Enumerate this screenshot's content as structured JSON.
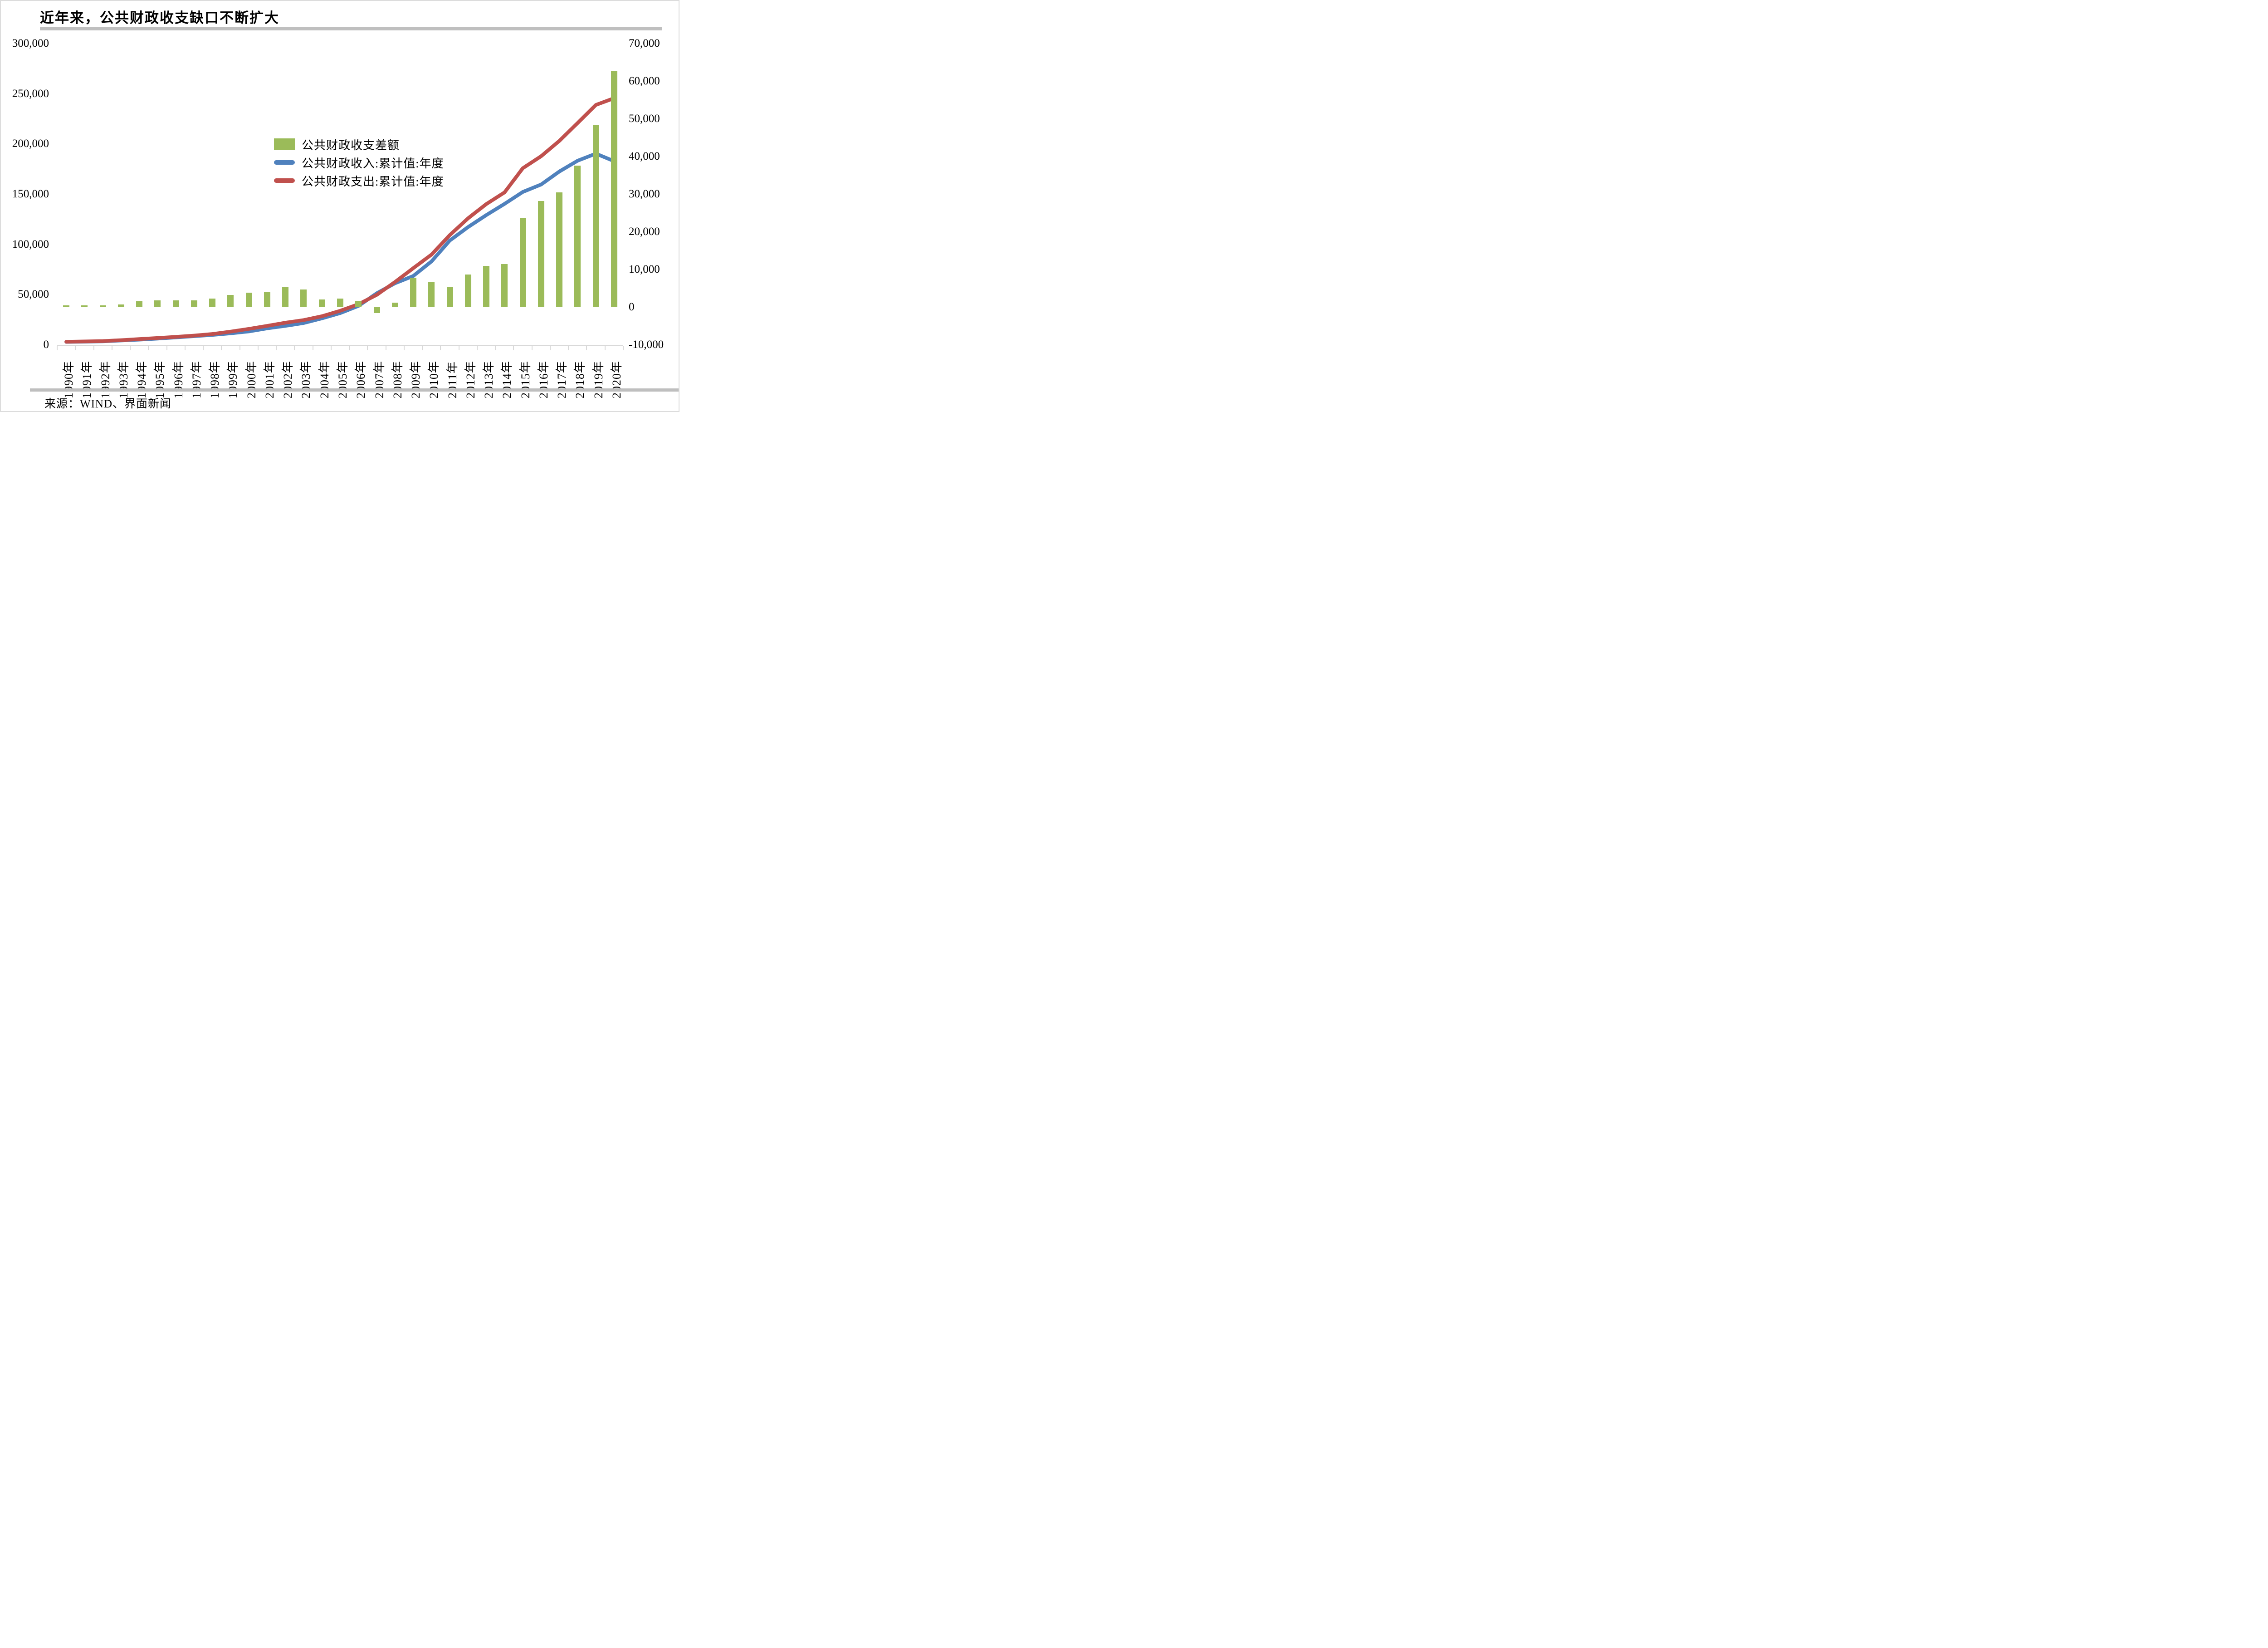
{
  "chart_data": {
    "type": "combo",
    "title": "近年来，公共财政收支缺口不断扩大",
    "source": "来源：WIND、界面新闻",
    "categories": [
      "1990年",
      "1991年",
      "1992年",
      "1993年",
      "1994年",
      "1995年",
      "1996年",
      "1997年",
      "1998年",
      "1999年",
      "2000年",
      "2001年",
      "2002年",
      "2003年",
      "2004年",
      "2005年",
      "2006年",
      "2007年",
      "2008年",
      "2009年",
      "2010年",
      "2011年",
      "2012年",
      "2013年",
      "2014年",
      "2015年",
      "2016年",
      "2017年",
      "2018年",
      "2019年",
      "2020年"
    ],
    "series": [
      {
        "name": "公共财政收支差额",
        "type": "bar",
        "axis": "right",
        "color": "#9bbb59",
        "values": [
          450,
          500,
          450,
          780,
          1590,
          1770,
          1860,
          1800,
          2320,
          3270,
          3860,
          4150,
          5440,
          4740,
          2090,
          2280,
          1660,
          -1540,
          1260,
          7780,
          6770,
          5370,
          8700,
          11000,
          11420,
          23610,
          28150,
          30490,
          37540,
          48490,
          62690
        ]
      },
      {
        "name": "公共财政收入:累计值:年度",
        "type": "line",
        "axis": "left",
        "color": "#4f81bd",
        "values": [
          2937,
          3149,
          3483,
          4349,
          5218,
          6242,
          7408,
          8651,
          9876,
          11444,
          13395,
          16386,
          18904,
          21715,
          26396,
          31649,
          38760,
          51322,
          61330,
          68518,
          83102,
          103874,
          117254,
          129210,
          140370,
          152269,
          159605,
          172593,
          183360,
          190382,
          182895
        ]
      },
      {
        "name": "公共财政支出:累计值:年度",
        "type": "line",
        "axis": "left",
        "color": "#c0504d",
        "values": [
          3084,
          3387,
          3742,
          4642,
          5793,
          6824,
          7938,
          9234,
          10798,
          13188,
          15887,
          18903,
          22053,
          24650,
          28487,
          33930,
          40423,
          49781,
          62593,
          76300,
          89874,
          109248,
          125953,
          140212,
          151786,
          175878,
          187755,
          203085,
          220904,
          238874,
          245588
        ]
      }
    ],
    "left_axis": {
      "min": 0,
      "max": 300000,
      "step": 50000,
      "tick_labels": [
        "300,000",
        "250,000",
        "200,000",
        "150,000",
        "100,000",
        "50,000",
        "0"
      ]
    },
    "right_axis": {
      "min": -10000,
      "max": 70000,
      "step": 10000,
      "tick_labels": [
        "70,000",
        "60,000",
        "50,000",
        "40,000",
        "30,000",
        "20,000",
        "10,000",
        "0",
        "-10,000"
      ]
    },
    "grid": false,
    "legend_position": "inside-left-center",
    "colors": {
      "bar_fill": "#9bbb59",
      "revenue_line": "#4f81bd",
      "expenditure_line": "#c0504d",
      "axis_gray": "#d9d9d9",
      "separator_gray": "#bfbfbf",
      "border_gray": "#dcdcdc",
      "text": "#000000"
    }
  }
}
